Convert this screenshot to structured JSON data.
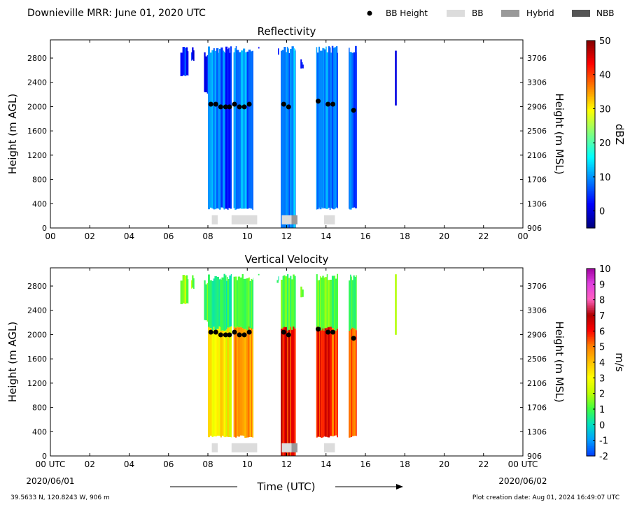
{
  "header": {
    "title": "Downieville MRR:  June 01, 2020 UTC",
    "legend": [
      {
        "label": "BB Height",
        "kind": "dot",
        "color": "#000000"
      },
      {
        "label": "BB",
        "kind": "box",
        "color": "#dcdcdc"
      },
      {
        "label": "Hybrid",
        "kind": "box",
        "color": "#999999"
      },
      {
        "label": "NBB",
        "kind": "box",
        "color": "#555555"
      }
    ]
  },
  "footer": {
    "location": "39.5633 N, 120.8243 W, 906 m",
    "creation": "Plot creation date: Aug 01, 2024 16:49:07 UTC",
    "start_date": "2020/06/01",
    "end_date": "2020/06/02",
    "xlabel": "Time (UTC)"
  },
  "chart_data": [
    {
      "type": "heatmap",
      "title": "Reflectivity",
      "ylabel": "Height (m AGL)",
      "y2label": "Height (m MSL)",
      "xlim": [
        0,
        24
      ],
      "ylim": [
        0,
        3100
      ],
      "x_ticks": [
        "00",
        "02",
        "04",
        "06",
        "08",
        "10",
        "12",
        "14",
        "16",
        "18",
        "20",
        "22",
        "00"
      ],
      "y_ticks": [
        0,
        400,
        800,
        1200,
        1600,
        2000,
        2400,
        2800
      ],
      "y2_ticks": [
        906,
        1306,
        1706,
        2106,
        2506,
        2906,
        3306,
        3706
      ],
      "colorbar": {
        "label": "dBZ",
        "min": -5,
        "max": 50,
        "ticks": [
          0,
          10,
          20,
          30,
          40,
          50
        ],
        "stops": [
          "#00007f",
          "#0000ff",
          "#007fff",
          "#00ffff",
          "#7fff7f",
          "#ffff00",
          "#ff7f00",
          "#ff0000",
          "#7f0000"
        ]
      },
      "echo_segments": [
        {
          "t0": 6.6,
          "t1": 7.0,
          "bottom": 2500,
          "top": 3000,
          "value": 3
        },
        {
          "t0": 7.15,
          "t1": 7.3,
          "bottom": 2750,
          "top": 3000,
          "value": 2
        },
        {
          "t0": 7.8,
          "t1": 8.05,
          "bottom": 2200,
          "top": 2900,
          "value": 2
        },
        {
          "t0": 8.0,
          "t1": 8.8,
          "bottom": 300,
          "top": 3000,
          "value": 8
        },
        {
          "t0": 8.8,
          "t1": 9.2,
          "bottom": 300,
          "top": 3000,
          "value": 6
        },
        {
          "t0": 9.3,
          "t1": 10.3,
          "bottom": 300,
          "top": 3000,
          "value": 9
        },
        {
          "t0": 10.5,
          "t1": 10.6,
          "bottom": 2950,
          "top": 3000,
          "value": 2
        },
        {
          "t0": 11.5,
          "t1": 11.6,
          "bottom": 2850,
          "top": 3000,
          "value": 2
        },
        {
          "t0": 11.7,
          "t1": 12.45,
          "bottom": 0,
          "top": 3000,
          "value": 10
        },
        {
          "t0": 12.7,
          "t1": 12.85,
          "bottom": 2600,
          "top": 2800,
          "value": 2
        },
        {
          "t0": 13.5,
          "t1": 14.6,
          "bottom": 300,
          "top": 3000,
          "value": 9
        },
        {
          "t0": 15.15,
          "t1": 15.55,
          "bottom": 300,
          "top": 3000,
          "value": 6
        },
        {
          "t0": 17.5,
          "t1": 17.58,
          "bottom": 1980,
          "top": 3000,
          "value": 3
        }
      ],
      "bb_height": [
        {
          "t": 8.15,
          "h": 2040
        },
        {
          "t": 8.4,
          "h": 2040
        },
        {
          "t": 8.65,
          "h": 1995
        },
        {
          "t": 8.9,
          "h": 1995
        },
        {
          "t": 9.1,
          "h": 1995
        },
        {
          "t": 9.35,
          "h": 2040
        },
        {
          "t": 9.6,
          "h": 1995
        },
        {
          "t": 9.85,
          "h": 1995
        },
        {
          "t": 10.1,
          "h": 2040
        },
        {
          "t": 11.85,
          "h": 2040
        },
        {
          "t": 12.1,
          "h": 1995
        },
        {
          "t": 13.6,
          "h": 2090
        },
        {
          "t": 14.1,
          "h": 2040
        },
        {
          "t": 14.35,
          "h": 2040
        },
        {
          "t": 15.4,
          "h": 1940
        }
      ],
      "bb_type_bars": [
        {
          "t0": 8.2,
          "t1": 8.5,
          "type": "BB"
        },
        {
          "t0": 9.2,
          "t1": 10.5,
          "type": "BB"
        },
        {
          "t0": 11.75,
          "t1": 12.25,
          "type": "BB"
        },
        {
          "t0": 12.25,
          "t1": 12.55,
          "type": "Hybrid"
        },
        {
          "t0": 13.9,
          "t1": 14.45,
          "type": "BB"
        }
      ]
    },
    {
      "type": "heatmap",
      "title": "Vertical Velocity",
      "ylabel": "Height (m AGL)",
      "y2label": "Height (m MSL)",
      "xlim": [
        0,
        24
      ],
      "ylim": [
        0,
        3100
      ],
      "x_ticks": [
        "00 UTC",
        "02",
        "04",
        "06",
        "08",
        "10",
        "12",
        "14",
        "16",
        "18",
        "20",
        "22",
        "00 UTC"
      ],
      "y_ticks": [
        0,
        400,
        800,
        1200,
        1600,
        2000,
        2400,
        2800
      ],
      "y2_ticks": [
        906,
        1306,
        1706,
        2106,
        2506,
        2906,
        3306,
        3706
      ],
      "colorbar": {
        "label": "m/s",
        "min": -2,
        "max": 10,
        "ticks": [
          -2,
          -1,
          0,
          1,
          2,
          3,
          4,
          5,
          6,
          7,
          8,
          9,
          10
        ],
        "stops": [
          "#0040ff",
          "#00a0ff",
          "#00e0c0",
          "#40ff40",
          "#c0ff00",
          "#ffff00",
          "#ffc000",
          "#ff8000",
          "#ff0000",
          "#b00000",
          "#ff60c0",
          "#e040e0",
          "#a000a0"
        ]
      },
      "echo_segments": [
        {
          "t0": 6.6,
          "t1": 7.0,
          "bottom": 2500,
          "top": 3000,
          "value": 1.5
        },
        {
          "t0": 7.15,
          "t1": 7.3,
          "bottom": 2750,
          "top": 3000,
          "value": 1.5
        },
        {
          "t0": 7.8,
          "t1": 8.05,
          "bottom": 2200,
          "top": 2900,
          "value": 1.0
        },
        {
          "t0": 8.0,
          "t1": 8.8,
          "bottom": 300,
          "top": 3000,
          "value": 3.2,
          "top_value": 0.5
        },
        {
          "t0": 8.8,
          "t1": 9.2,
          "bottom": 300,
          "top": 3000,
          "value": 3.0,
          "top_value": 0.5
        },
        {
          "t0": 9.3,
          "t1": 10.3,
          "bottom": 300,
          "top": 3000,
          "value": 4.5,
          "top_value": 1.0
        },
        {
          "t0": 10.5,
          "t1": 10.6,
          "bottom": 2950,
          "top": 3000,
          "value": 1.0
        },
        {
          "t0": 11.5,
          "t1": 11.6,
          "bottom": 2850,
          "top": 3000,
          "value": 1.0
        },
        {
          "t0": 11.7,
          "t1": 12.45,
          "bottom": 0,
          "top": 3000,
          "value": 6.0,
          "top_value": 1.0
        },
        {
          "t0": 12.7,
          "t1": 12.85,
          "bottom": 2600,
          "top": 2800,
          "value": 1.0
        },
        {
          "t0": 13.5,
          "t1": 14.6,
          "bottom": 300,
          "top": 3000,
          "value": 5.8,
          "top_value": 1.2
        },
        {
          "t0": 15.15,
          "t1": 15.55,
          "bottom": 300,
          "top": 3000,
          "value": 5.5,
          "top_value": 1.0
        },
        {
          "t0": 17.5,
          "t1": 17.58,
          "bottom": 1980,
          "top": 3000,
          "value": 1.5
        }
      ],
      "bb_height": [
        {
          "t": 8.15,
          "h": 2040
        },
        {
          "t": 8.4,
          "h": 2040
        },
        {
          "t": 8.65,
          "h": 1995
        },
        {
          "t": 8.9,
          "h": 1995
        },
        {
          "t": 9.1,
          "h": 1995
        },
        {
          "t": 9.35,
          "h": 2040
        },
        {
          "t": 9.6,
          "h": 1995
        },
        {
          "t": 9.85,
          "h": 1995
        },
        {
          "t": 10.1,
          "h": 2040
        },
        {
          "t": 11.85,
          "h": 2040
        },
        {
          "t": 12.1,
          "h": 1995
        },
        {
          "t": 13.6,
          "h": 2090
        },
        {
          "t": 14.1,
          "h": 2040
        },
        {
          "t": 14.35,
          "h": 2040
        },
        {
          "t": 15.4,
          "h": 1940
        }
      ],
      "bb_type_bars": [
        {
          "t0": 8.2,
          "t1": 8.5,
          "type": "BB"
        },
        {
          "t0": 9.2,
          "t1": 10.5,
          "type": "BB"
        },
        {
          "t0": 11.75,
          "t1": 12.25,
          "type": "BB"
        },
        {
          "t0": 12.25,
          "t1": 12.55,
          "type": "Hybrid"
        },
        {
          "t0": 13.9,
          "t1": 14.45,
          "type": "BB"
        }
      ]
    }
  ]
}
